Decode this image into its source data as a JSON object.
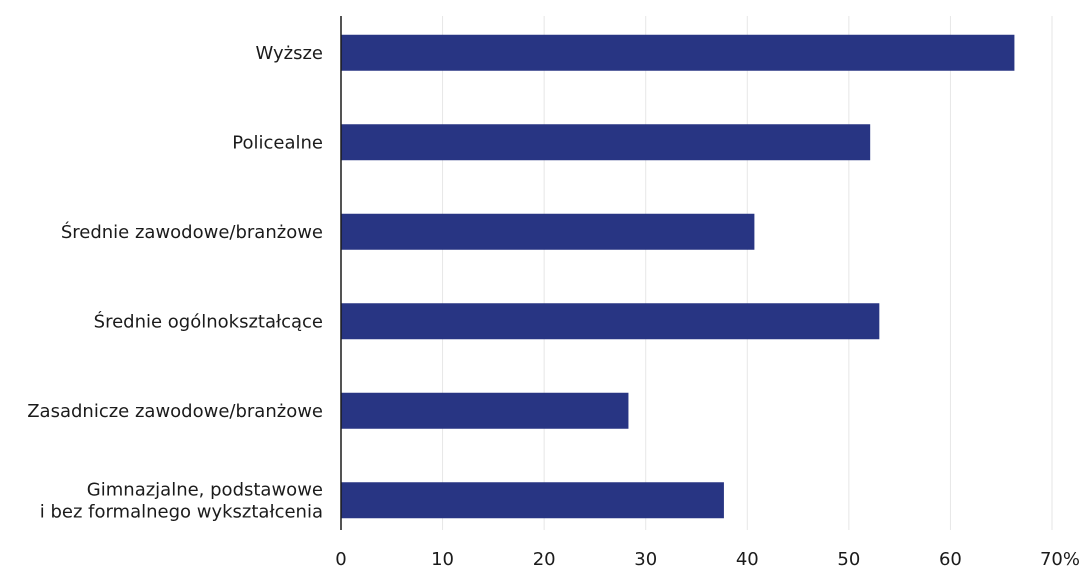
{
  "chart_data": {
    "type": "bar",
    "orientation": "horizontal",
    "categories": [
      [
        "Wyższe"
      ],
      [
        "Policealne"
      ],
      [
        "Średnie zawodowe/branżowe"
      ],
      [
        "Średnie ogólnokształcące"
      ],
      [
        "Zasadnicze zawodowe/branżowe"
      ],
      [
        "Gimnazjalne, podstawowe",
        "i bez formalnego wykształcenia"
      ]
    ],
    "values": [
      66.3,
      52.1,
      40.7,
      53.0,
      28.3,
      37.7
    ],
    "title": "",
    "xlabel": "",
    "ylabel": "",
    "xlim": [
      0,
      70
    ],
    "ticks": [
      0,
      10,
      20,
      30,
      40,
      50,
      60,
      70
    ],
    "tick_labels": [
      "0",
      "10",
      "20",
      "30",
      "40",
      "50",
      "60",
      "70%"
    ],
    "grid": true,
    "legend": "none",
    "bar_color": "#283583",
    "grid_color": "#e6e6e6",
    "axis_color": "#1b1b1b"
  }
}
